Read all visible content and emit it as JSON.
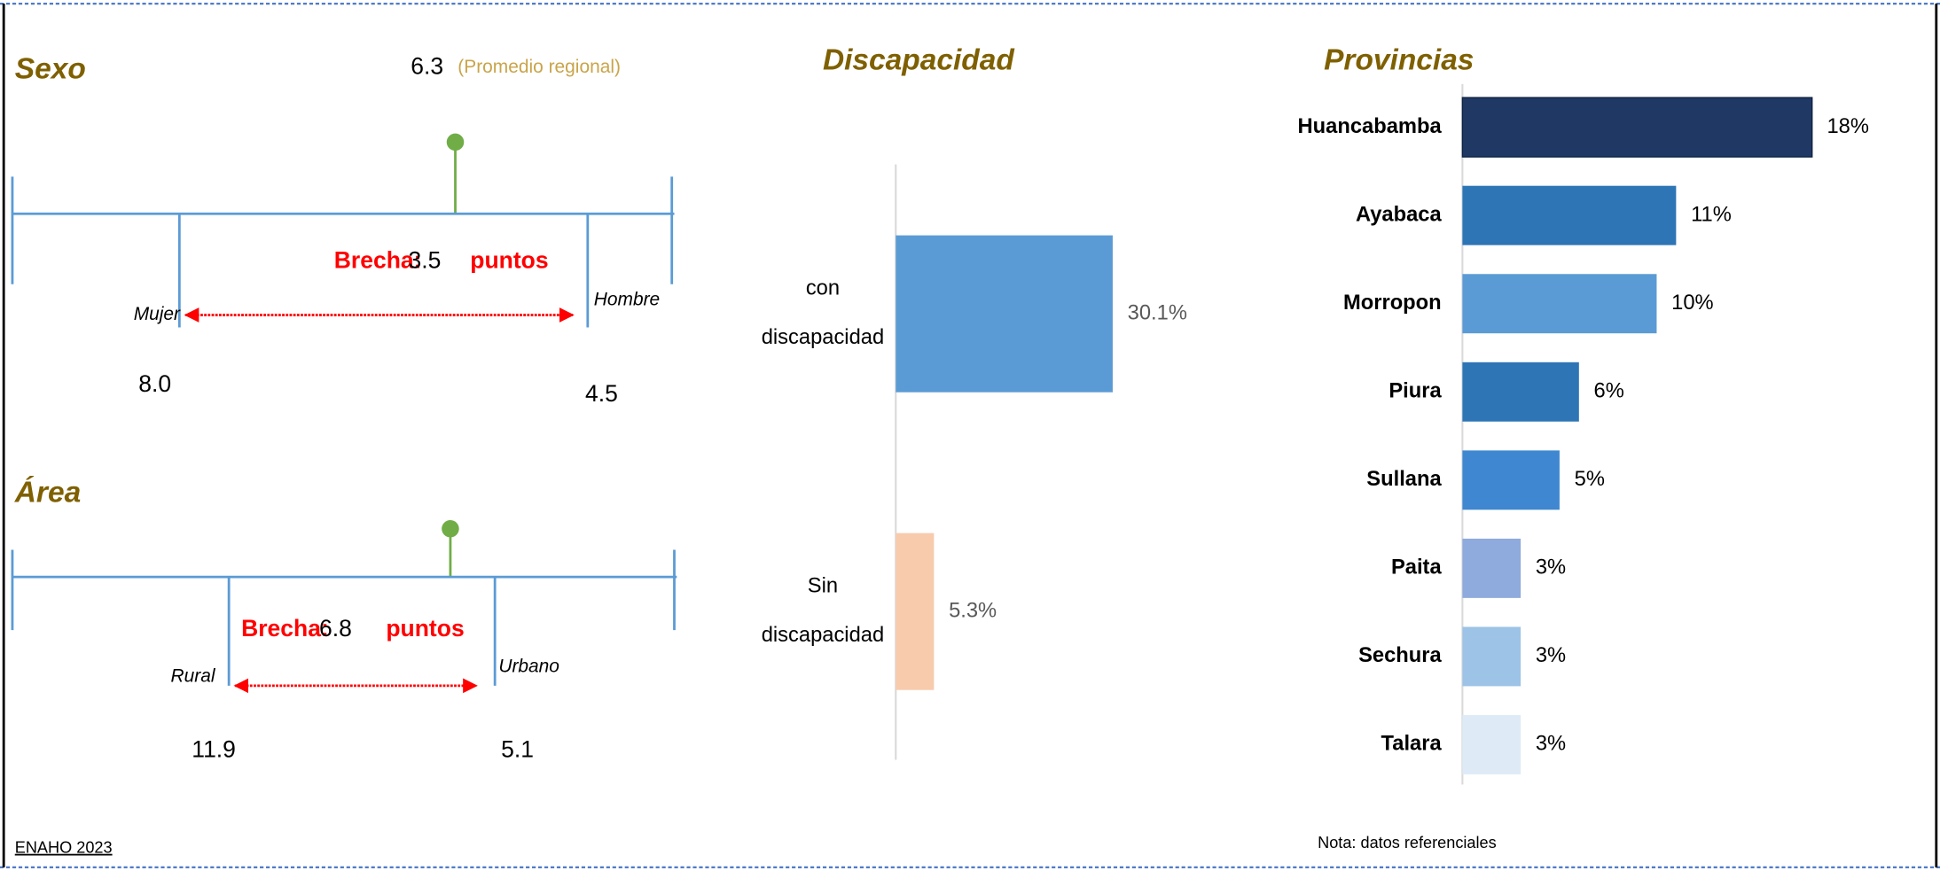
{
  "sexo": {
    "title": "Sexo",
    "average": "6.3",
    "average_label": "(Promedio regional)",
    "left_name": "Mujer",
    "left_value": "8.0",
    "right_name": "Hombre",
    "right_value": "4.5",
    "gap_label": "Brecha:",
    "gap_value": "3.5",
    "gap_unit": "puntos"
  },
  "area": {
    "title": "Área",
    "left_name": "Rural",
    "left_value": "11.9",
    "right_name": "Urbano",
    "right_value": "5.1",
    "gap_label": "Brecha:",
    "gap_value": "6.8",
    "gap_unit": "puntos"
  },
  "chart_data": [
    {
      "type": "hbar",
      "title": "Discapacidad",
      "categories": [
        "con discapacidad",
        "Sin discapacidad"
      ],
      "values": [
        30.1,
        5.3
      ],
      "value_labels": [
        "30.1%",
        "5.3%"
      ],
      "colors": [
        "#5b9bd5",
        "#f8cbad"
      ],
      "xlim": [
        0,
        40
      ]
    },
    {
      "type": "hbar",
      "title": "Provincias",
      "categories": [
        "Huancabamba",
        "Ayabaca",
        "Morropon",
        "Piura",
        "Sullana",
        "Paita",
        "Sechura",
        "Talara"
      ],
      "values": [
        18,
        11,
        10,
        6,
        5,
        3,
        3,
        3
      ],
      "value_labels": [
        "18%",
        "11%",
        "10%",
        "6%",
        "5%",
        "3%",
        "3%",
        "3%"
      ],
      "colors": [
        "#1f3864",
        "#2e75b6",
        "#5b9bd5",
        "#2e75b6",
        "#3f87d0",
        "#8faadc",
        "#9dc3e6",
        "#deebf7"
      ],
      "xlim": [
        0,
        20
      ]
    }
  ],
  "footer": {
    "source": "ENAHO 2023",
    "note": "Nota: datos referenciales"
  }
}
